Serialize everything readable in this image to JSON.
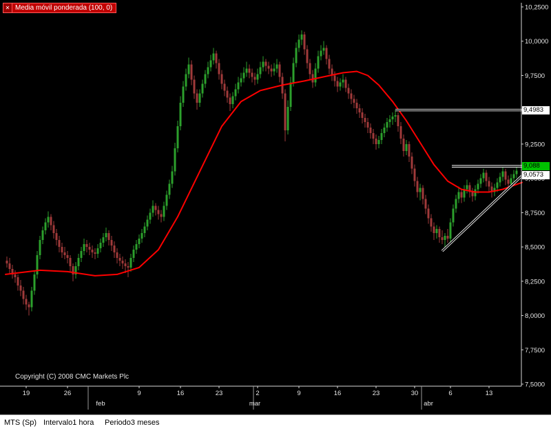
{
  "icons": {
    "close": "✕"
  },
  "footer": {
    "copyright": "Copyright (C) 2008 CMC Markets Plc"
  },
  "status_bar": {
    "instrument": "MTS (Sp)",
    "interval": "Intervalo1 hora",
    "period": "Periodo3 meses"
  },
  "chart_data": {
    "type": "candlestick",
    "title": "Media móvil ponderada (100, 0)",
    "instrument": "MTS (Sp)",
    "interval": "1 hora",
    "period": "3 meses",
    "colors": {
      "background": "#000000",
      "up": "#2ca02c",
      "down": "#a03a3a",
      "ma": "#ff0000",
      "axis": "#d9d9d9",
      "tick_text": "#e6e6e6",
      "indicator_bg": "#c00000",
      "marker_green": "#00c000"
    },
    "y_axis": {
      "min": 7.5,
      "max": 10.25,
      "tick_step": 0.25,
      "tick_labels": [
        {
          "v": 10.25,
          "label": "10,2500"
        },
        {
          "v": 10.0,
          "label": "10,0000"
        },
        {
          "v": 9.75,
          "label": "9,7500"
        },
        {
          "v": 9.5,
          "label": "9,5000"
        },
        {
          "v": 9.25,
          "label": "9,2500"
        },
        {
          "v": 9.0,
          "label": "9,0000"
        },
        {
          "v": 8.75,
          "label": "8,7500"
        },
        {
          "v": 8.5,
          "label": "8,5000"
        },
        {
          "v": 8.25,
          "label": "8,2500"
        },
        {
          "v": 8.0,
          "label": "8,0000"
        },
        {
          "v": 7.75,
          "label": "7,7500"
        },
        {
          "v": 7.5,
          "label": "7,5000"
        }
      ]
    },
    "x_axis": {
      "week_labels": [
        {
          "i": 7,
          "label": "19"
        },
        {
          "i": 22,
          "label": "26"
        },
        {
          "i": 48,
          "label": "9"
        },
        {
          "i": 63,
          "label": "16"
        },
        {
          "i": 77,
          "label": "23"
        },
        {
          "i": 91,
          "label": "2"
        },
        {
          "i": 106,
          "label": "9"
        },
        {
          "i": 120,
          "label": "16"
        },
        {
          "i": 134,
          "label": "23"
        },
        {
          "i": 148,
          "label": "30"
        },
        {
          "i": 161,
          "label": "6"
        },
        {
          "i": 175,
          "label": "13"
        }
      ],
      "month_labels": [
        {
          "i": 34,
          "label": "feb"
        },
        {
          "i": 90,
          "label": "mar"
        },
        {
          "i": 153,
          "label": "abr"
        }
      ],
      "month_boundaries": [
        29.5,
        89.5,
        150.5
      ]
    },
    "price_markers": [
      {
        "value": 9.4983,
        "label": "9,4983",
        "style": "white",
        "anchor": "center"
      },
      {
        "value": 9.088,
        "label": "9,088",
        "style": "green",
        "anchor": "center"
      },
      {
        "value": 9.0573,
        "label": "9,0573",
        "style": "white",
        "anchor": "below"
      }
    ],
    "trendlines": [
      {
        "from": [
          141,
          9.4983
        ],
        "to": [
          187,
          9.4983
        ]
      },
      {
        "from": [
          161.5,
          9.088
        ],
        "to": [
          187,
          9.088
        ]
      },
      {
        "from": [
          158,
          8.47
        ],
        "to": [
          187,
          9.02
        ]
      }
    ],
    "ma_line": {
      "name": "Media móvil ponderada (100, 0)",
      "color": "#ff0000",
      "points": [
        [
          -0.5,
          8.3
        ],
        [
          12,
          8.33
        ],
        [
          22,
          8.32
        ],
        [
          32,
          8.29
        ],
        [
          40,
          8.3
        ],
        [
          48,
          8.35
        ],
        [
          55,
          8.48
        ],
        [
          62,
          8.72
        ],
        [
          70,
          9.05
        ],
        [
          78,
          9.38
        ],
        [
          85,
          9.56
        ],
        [
          92,
          9.64
        ],
        [
          100,
          9.68
        ],
        [
          108,
          9.71
        ],
        [
          115,
          9.74
        ],
        [
          122,
          9.77
        ],
        [
          127,
          9.78
        ],
        [
          131,
          9.75
        ],
        [
          135,
          9.68
        ],
        [
          140,
          9.56
        ],
        [
          145,
          9.42
        ],
        [
          150,
          9.26
        ],
        [
          155,
          9.1
        ],
        [
          160,
          8.98
        ],
        [
          165,
          8.92
        ],
        [
          170,
          8.9
        ],
        [
          175,
          8.9
        ],
        [
          180,
          8.92
        ],
        [
          187,
          8.97
        ]
      ]
    },
    "candle_columns": [
      "open",
      "high",
      "low",
      "close"
    ],
    "candles": [
      [
        8.4,
        8.43,
        8.35,
        8.38
      ],
      [
        8.38,
        8.42,
        8.31,
        8.34
      ],
      [
        8.34,
        8.37,
        8.27,
        8.3
      ],
      [
        8.3,
        8.33,
        8.24,
        8.28
      ],
      [
        8.28,
        8.3,
        8.18,
        8.22
      ],
      [
        8.22,
        8.26,
        8.14,
        8.18
      ],
      [
        8.18,
        8.21,
        8.08,
        8.12
      ],
      [
        8.12,
        8.15,
        8.04,
        8.08
      ],
      [
        8.08,
        8.1,
        8.0,
        8.06
      ],
      [
        8.06,
        8.21,
        8.03,
        8.18
      ],
      [
        8.18,
        8.33,
        8.15,
        8.3
      ],
      [
        8.3,
        8.47,
        8.27,
        8.44
      ],
      [
        8.44,
        8.58,
        8.41,
        8.55
      ],
      [
        8.55,
        8.65,
        8.52,
        8.62
      ],
      [
        8.62,
        8.71,
        8.59,
        8.68
      ],
      [
        8.68,
        8.76,
        8.64,
        8.72
      ],
      [
        8.72,
        8.74,
        8.62,
        8.66
      ],
      [
        8.66,
        8.69,
        8.56,
        8.6
      ],
      [
        8.6,
        8.63,
        8.51,
        8.55
      ],
      [
        8.55,
        8.58,
        8.46,
        8.5
      ],
      [
        8.5,
        8.53,
        8.42,
        8.46
      ],
      [
        8.46,
        8.5,
        8.41,
        8.44
      ],
      [
        8.44,
        8.47,
        8.38,
        8.42
      ],
      [
        8.42,
        8.44,
        8.32,
        8.36
      ],
      [
        8.36,
        8.38,
        8.25,
        8.3
      ],
      [
        8.3,
        8.39,
        8.27,
        8.36
      ],
      [
        8.36,
        8.45,
        8.33,
        8.42
      ],
      [
        8.42,
        8.5,
        8.39,
        8.47
      ],
      [
        8.47,
        8.56,
        8.44,
        8.52
      ],
      [
        8.52,
        8.55,
        8.46,
        8.5
      ],
      [
        8.5,
        8.53,
        8.44,
        8.48
      ],
      [
        8.48,
        8.51,
        8.42,
        8.46
      ],
      [
        8.46,
        8.49,
        8.41,
        8.45
      ],
      [
        8.45,
        8.52,
        8.42,
        8.49
      ],
      [
        8.49,
        8.56,
        8.46,
        8.53
      ],
      [
        8.53,
        8.6,
        8.5,
        8.57
      ],
      [
        8.57,
        8.64,
        8.54,
        8.6
      ],
      [
        8.6,
        8.62,
        8.51,
        8.55
      ],
      [
        8.55,
        8.58,
        8.47,
        8.51
      ],
      [
        8.51,
        8.54,
        8.42,
        8.46
      ],
      [
        8.46,
        8.49,
        8.38,
        8.42
      ],
      [
        8.42,
        8.45,
        8.36,
        8.4
      ],
      [
        8.4,
        8.43,
        8.34,
        8.38
      ],
      [
        8.38,
        8.41,
        8.31,
        8.36
      ],
      [
        8.36,
        8.39,
        8.28,
        8.35
      ],
      [
        8.35,
        8.45,
        8.32,
        8.42
      ],
      [
        8.42,
        8.51,
        8.39,
        8.48
      ],
      [
        8.48,
        8.55,
        8.45,
        8.52
      ],
      [
        8.52,
        8.59,
        8.49,
        8.56
      ],
      [
        8.56,
        8.63,
        8.53,
        8.6
      ],
      [
        8.6,
        8.68,
        8.57,
        8.65
      ],
      [
        8.65,
        8.73,
        8.62,
        8.7
      ],
      [
        8.7,
        8.78,
        8.67,
        8.75
      ],
      [
        8.75,
        8.84,
        8.72,
        8.8
      ],
      [
        8.8,
        8.82,
        8.73,
        8.77
      ],
      [
        8.77,
        8.8,
        8.7,
        8.74
      ],
      [
        8.74,
        8.77,
        8.68,
        8.72
      ],
      [
        8.72,
        8.83,
        8.69,
        8.8
      ],
      [
        8.8,
        8.91,
        8.77,
        8.88
      ],
      [
        8.88,
        8.99,
        8.85,
        8.96
      ],
      [
        8.96,
        9.09,
        8.93,
        9.05
      ],
      [
        9.05,
        9.26,
        9.02,
        9.22
      ],
      [
        9.22,
        9.42,
        9.19,
        9.38
      ],
      [
        9.38,
        9.6,
        9.35,
        9.55
      ],
      [
        9.55,
        9.71,
        9.52,
        9.67
      ],
      [
        9.67,
        9.8,
        9.64,
        9.76
      ],
      [
        9.76,
        9.88,
        9.73,
        9.83
      ],
      [
        9.83,
        9.86,
        9.68,
        9.72
      ],
      [
        9.72,
        9.75,
        9.58,
        9.62
      ],
      [
        9.62,
        9.65,
        9.5,
        9.55
      ],
      [
        9.55,
        9.65,
        9.52,
        9.62
      ],
      [
        9.62,
        9.72,
        9.59,
        9.69
      ],
      [
        9.69,
        9.79,
        9.66,
        9.76
      ],
      [
        9.76,
        9.85,
        9.73,
        9.81
      ],
      [
        9.81,
        9.9,
        9.78,
        9.86
      ],
      [
        9.86,
        9.95,
        9.83,
        9.91
      ],
      [
        9.91,
        9.93,
        9.8,
        9.84
      ],
      [
        9.84,
        9.87,
        9.72,
        9.76
      ],
      [
        9.76,
        9.79,
        9.65,
        9.69
      ],
      [
        9.69,
        9.72,
        9.6,
        9.64
      ],
      [
        9.64,
        9.67,
        9.55,
        9.59
      ],
      [
        9.59,
        9.62,
        9.49,
        9.54
      ],
      [
        9.54,
        9.63,
        9.51,
        9.6
      ],
      [
        9.6,
        9.69,
        9.57,
        9.65
      ],
      [
        9.65,
        9.74,
        9.62,
        9.7
      ],
      [
        9.7,
        9.77,
        9.67,
        9.73
      ],
      [
        9.73,
        9.81,
        9.7,
        9.77
      ],
      [
        9.77,
        9.85,
        9.74,
        9.8
      ],
      [
        9.8,
        9.83,
        9.73,
        9.77
      ],
      [
        9.77,
        9.8,
        9.7,
        9.74
      ],
      [
        9.74,
        9.77,
        9.68,
        9.72
      ],
      [
        9.72,
        9.8,
        9.69,
        9.76
      ],
      [
        9.76,
        9.85,
        9.73,
        9.81
      ],
      [
        9.81,
        9.89,
        9.78,
        9.85
      ],
      [
        9.85,
        9.87,
        9.78,
        9.82
      ],
      [
        9.82,
        9.85,
        9.76,
        9.8
      ],
      [
        9.8,
        9.83,
        9.74,
        9.78
      ],
      [
        9.78,
        9.84,
        9.75,
        9.8
      ],
      [
        9.8,
        9.87,
        9.77,
        9.83
      ],
      [
        9.83,
        9.85,
        9.7,
        9.74
      ],
      [
        9.74,
        9.77,
        9.58,
        9.62
      ],
      [
        9.62,
        9.65,
        9.27,
        9.35
      ],
      [
        9.35,
        9.57,
        9.32,
        9.52
      ],
      [
        9.52,
        9.74,
        9.49,
        9.7
      ],
      [
        9.7,
        9.88,
        9.67,
        9.84
      ],
      [
        9.84,
        9.99,
        9.81,
        9.95
      ],
      [
        9.95,
        10.05,
        9.92,
        10.01
      ],
      [
        10.01,
        10.08,
        9.97,
        10.05
      ],
      [
        10.05,
        10.07,
        9.9,
        9.94
      ],
      [
        9.94,
        9.97,
        9.8,
        9.84
      ],
      [
        9.84,
        9.87,
        9.72,
        9.76
      ],
      [
        9.76,
        9.79,
        9.66,
        9.7
      ],
      [
        9.7,
        9.84,
        9.67,
        9.8
      ],
      [
        9.8,
        9.93,
        9.77,
        9.89
      ],
      [
        9.89,
        9.97,
        9.86,
        9.93
      ],
      [
        9.93,
        10.0,
        9.9,
        9.95
      ],
      [
        9.95,
        9.97,
        9.83,
        9.87
      ],
      [
        9.87,
        9.9,
        9.76,
        9.8
      ],
      [
        9.8,
        9.83,
        9.71,
        9.75
      ],
      [
        9.75,
        9.78,
        9.67,
        9.71
      ],
      [
        9.71,
        9.74,
        9.63,
        9.67
      ],
      [
        9.67,
        9.73,
        9.64,
        9.7
      ],
      [
        9.7,
        9.76,
        9.66,
        9.72
      ],
      [
        9.72,
        9.74,
        9.63,
        9.66
      ],
      [
        9.66,
        9.69,
        9.58,
        9.62
      ],
      [
        9.62,
        9.65,
        9.54,
        9.58
      ],
      [
        9.58,
        9.61,
        9.51,
        9.55
      ],
      [
        9.55,
        9.58,
        9.47,
        9.51
      ],
      [
        9.51,
        9.54,
        9.44,
        9.48
      ],
      [
        9.48,
        9.51,
        9.4,
        9.44
      ],
      [
        9.44,
        9.47,
        9.37,
        9.41
      ],
      [
        9.41,
        9.44,
        9.33,
        9.37
      ],
      [
        9.37,
        9.4,
        9.29,
        9.33
      ],
      [
        9.33,
        9.36,
        9.25,
        9.29
      ],
      [
        9.29,
        9.32,
        9.21,
        9.25
      ],
      [
        9.25,
        9.31,
        9.22,
        9.28
      ],
      [
        9.28,
        9.36,
        9.25,
        9.33
      ],
      [
        9.33,
        9.4,
        9.3,
        9.37
      ],
      [
        9.37,
        9.44,
        9.34,
        9.41
      ],
      [
        9.41,
        9.46,
        9.37,
        9.43
      ],
      [
        9.43,
        9.48,
        9.39,
        9.45
      ],
      [
        9.45,
        9.5,
        9.41,
        9.46
      ],
      [
        9.46,
        9.48,
        9.34,
        9.38
      ],
      [
        9.38,
        9.41,
        9.25,
        9.29
      ],
      [
        9.29,
        9.32,
        9.16,
        9.2
      ],
      [
        9.2,
        9.28,
        9.17,
        9.25
      ],
      [
        9.25,
        9.27,
        9.12,
        9.16
      ],
      [
        9.16,
        9.19,
        9.03,
        9.07
      ],
      [
        9.07,
        9.1,
        8.94,
        8.98
      ],
      [
        8.98,
        9.01,
        8.86,
        8.9
      ],
      [
        8.9,
        8.96,
        8.84,
        8.93
      ],
      [
        8.93,
        8.95,
        8.81,
        8.85
      ],
      [
        8.85,
        8.88,
        8.74,
        8.78
      ],
      [
        8.78,
        8.81,
        8.67,
        8.71
      ],
      [
        8.71,
        8.74,
        8.61,
        8.65
      ],
      [
        8.65,
        8.68,
        8.55,
        8.6
      ],
      [
        8.6,
        8.66,
        8.56,
        8.63
      ],
      [
        8.63,
        8.65,
        8.53,
        8.57
      ],
      [
        8.57,
        8.62,
        8.52,
        8.55
      ],
      [
        8.55,
        8.6,
        8.5,
        8.58
      ],
      [
        8.58,
        8.63,
        8.53,
        8.56
      ],
      [
        8.56,
        8.71,
        8.53,
        8.68
      ],
      [
        8.68,
        8.81,
        8.65,
        8.78
      ],
      [
        8.78,
        8.88,
        8.75,
        8.85
      ],
      [
        8.85,
        8.94,
        8.82,
        8.9
      ],
      [
        8.9,
        8.92,
        8.82,
        8.86
      ],
      [
        8.86,
        8.95,
        8.83,
        8.92
      ],
      [
        8.92,
        8.99,
        8.89,
        8.95
      ],
      [
        8.95,
        8.97,
        8.86,
        8.9
      ],
      [
        8.9,
        8.93,
        8.83,
        8.87
      ],
      [
        8.87,
        8.95,
        8.84,
        8.92
      ],
      [
        8.92,
        8.99,
        8.89,
        8.96
      ],
      [
        8.96,
        9.03,
        8.93,
        9.0
      ],
      [
        9.0,
        9.07,
        8.97,
        9.04
      ],
      [
        9.04,
        9.06,
        8.94,
        8.98
      ],
      [
        8.98,
        9.01,
        8.9,
        8.94
      ],
      [
        8.94,
        8.97,
        8.86,
        8.9
      ],
      [
        8.9,
        8.96,
        8.87,
        8.93
      ],
      [
        8.93,
        9.0,
        8.9,
        8.97
      ],
      [
        8.97,
        9.04,
        8.94,
        9.01
      ],
      [
        9.01,
        9.088,
        8.98,
        9.05
      ],
      [
        9.05,
        9.07,
        8.95,
        8.99
      ],
      [
        8.99,
        9.02,
        8.92,
        8.96
      ],
      [
        8.96,
        9.03,
        8.93,
        9.0
      ],
      [
        9.0,
        9.06,
        8.97,
        9.03
      ],
      [
        9.03,
        9.08,
        9.0,
        9.057
      ]
    ]
  }
}
